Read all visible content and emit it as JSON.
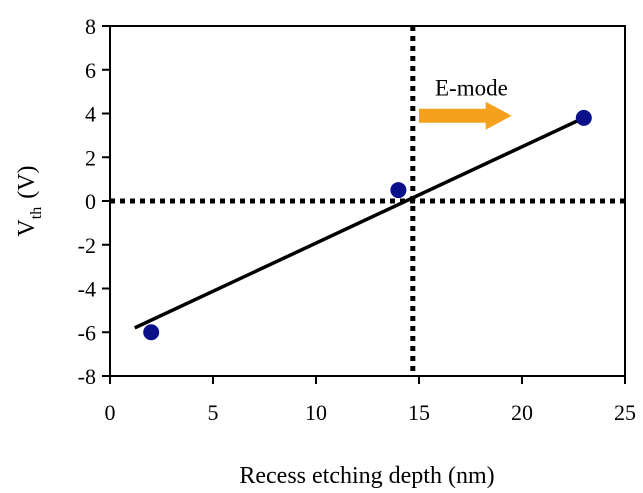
{
  "chart_data": {
    "type": "scatter",
    "title": "",
    "xlabel": "Recess etching depth (nm)",
    "ylabel": "V",
    "ylabel_subscript": "th",
    "ylabel_unit": "(V)",
    "xlim": [
      0,
      25
    ],
    "ylim": [
      -8,
      8
    ],
    "x_ticks": [
      0,
      5,
      10,
      15,
      20,
      25
    ],
    "y_ticks": [
      8,
      6,
      4,
      2,
      0,
      -2,
      -4,
      -6,
      -8
    ],
    "grid": false,
    "legend": "none",
    "series": [
      {
        "x": [
          2,
          14,
          23
        ],
        "y": [
          -6.0,
          0.5,
          3.8
        ],
        "color": "#0a0f8a",
        "marker": "circle"
      }
    ],
    "fit_line": {
      "x": [
        1.2,
        23
      ],
      "y": [
        -5.8,
        3.8
      ],
      "color": "#000000"
    },
    "reference_lines": [
      {
        "orientation": "vertical",
        "x": 14.7,
        "style": "dotted",
        "color": "#000000"
      },
      {
        "orientation": "horizontal",
        "y": 0,
        "style": "dotted",
        "color": "#000000"
      }
    ],
    "annotations": [
      {
        "text": "E-mode",
        "arrow": {
          "from": [
            15.0,
            3.9
          ],
          "to": [
            19.5,
            3.9
          ],
          "color": "#f5a11c"
        }
      }
    ]
  }
}
